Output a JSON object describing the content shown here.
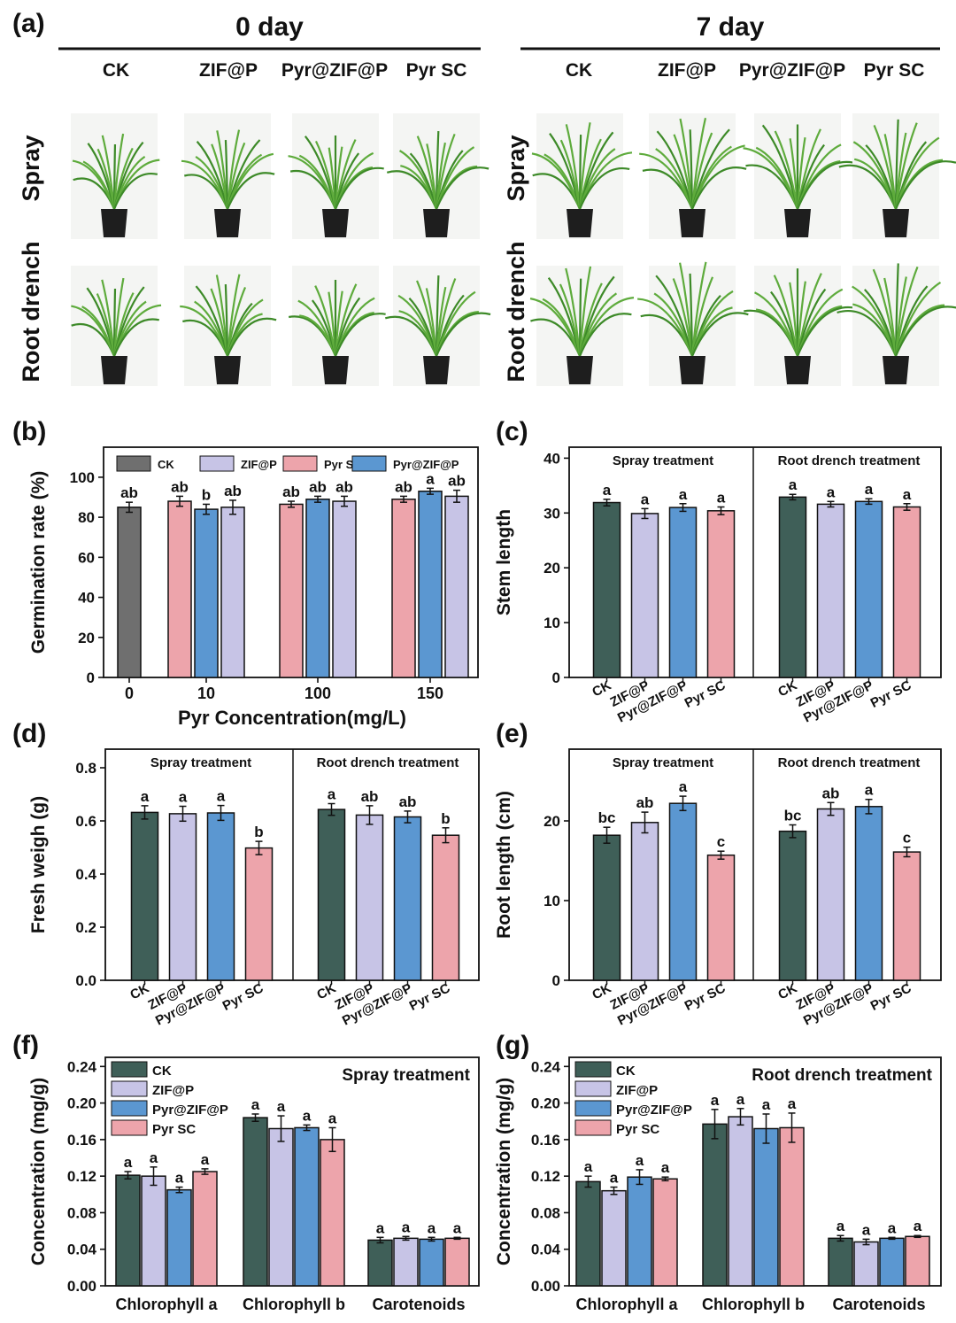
{
  "colors": {
    "CK": "#3f5f58",
    "ZIF@P": "#c7c4e6",
    "Pyr@ZIF@P": "#5b97d1",
    "Pyr SC": "#eda4ab",
    "CK_b": "#6f6f6f",
    "leaf": "#5eab3c",
    "pot": "#1e1e1e"
  },
  "panel_a": {
    "label": "(a)",
    "groups": [
      {
        "title": "0 day",
        "columns": [
          "CK",
          "ZIF@P",
          "Pyr@ZIF@P",
          "Pyr SC"
        ]
      },
      {
        "title": "7 day",
        "columns": [
          "CK",
          "ZIF@P",
          "Pyr@ZIF@P",
          "Pyr SC"
        ]
      }
    ],
    "rows": [
      "Spray",
      "Root drench"
    ]
  },
  "chart_data": [
    {
      "id": "b",
      "label": "(b)",
      "type": "bar",
      "ylabel": "Germination rate (%)",
      "xlabel": "Pyr Concentration(mg/L)",
      "ylim": [
        0,
        115
      ],
      "yticks": [
        0,
        20,
        40,
        60,
        80,
        100
      ],
      "legend": [
        "CK",
        "ZIF@P",
        "Pyr SC",
        "Pyr@ZIF@P"
      ],
      "groups": [
        {
          "label": "0",
          "bars": [
            {
              "series": "CK",
              "value": 85,
              "err": 2.5,
              "sig": "ab"
            }
          ]
        },
        {
          "label": "10",
          "bars": [
            {
              "series": "Pyr SC",
              "value": 88,
              "err": 2.5,
              "sig": "ab"
            },
            {
              "series": "Pyr@ZIF@P",
              "value": 84,
              "err": 2.5,
              "sig": "b"
            },
            {
              "series": "ZIF@P",
              "value": 85,
              "err": 3.5,
              "sig": "ab"
            }
          ]
        },
        {
          "label": "100",
          "bars": [
            {
              "series": "Pyr SC",
              "value": 86.5,
              "err": 1.5,
              "sig": "ab"
            },
            {
              "series": "Pyr@ZIF@P",
              "value": 89,
              "err": 1.5,
              "sig": "ab"
            },
            {
              "series": "ZIF@P",
              "value": 88,
              "err": 2.5,
              "sig": "ab"
            }
          ]
        },
        {
          "label": "150",
          "bars": [
            {
              "series": "Pyr SC",
              "value": 89,
              "err": 1.5,
              "sig": "ab"
            },
            {
              "series": "Pyr@ZIF@P",
              "value": 93,
              "err": 1.5,
              "sig": "a"
            },
            {
              "series": "ZIF@P",
              "value": 90.5,
              "err": 3,
              "sig": "ab"
            }
          ]
        }
      ]
    },
    {
      "id": "c",
      "label": "(c)",
      "type": "bar",
      "ylabel": "Stem length",
      "xlabel": "",
      "ylim": [
        0,
        42
      ],
      "yticks": [
        0,
        10,
        20,
        30,
        40
      ],
      "categories": [
        "CK",
        "ZIF@P",
        "Pyr@ZIF@P",
        "Pyr SC"
      ],
      "panels": [
        {
          "title": "Spray treatment",
          "values": [
            31.9,
            29.9,
            31.0,
            30.4
          ],
          "errors": [
            0.6,
            0.9,
            0.7,
            0.7
          ],
          "sig": [
            "a",
            "a",
            "a",
            "a"
          ]
        },
        {
          "title": "Root drench treatment",
          "values": [
            32.9,
            31.6,
            32.1,
            31.1
          ],
          "errors": [
            0.5,
            0.5,
            0.5,
            0.6
          ],
          "sig": [
            "a",
            "a",
            "a",
            "a"
          ]
        }
      ]
    },
    {
      "id": "d",
      "label": "(d)",
      "type": "bar",
      "ylabel": "Fresh weigh (g)",
      "xlabel": "",
      "ylim": [
        0,
        0.87
      ],
      "yticks": [
        0.0,
        0.2,
        0.4,
        0.6,
        0.8
      ],
      "categories": [
        "CK",
        "ZIF@P",
        "Pyr@ZIF@P",
        "Pyr SC"
      ],
      "panels": [
        {
          "title": "Spray treatment",
          "values": [
            0.632,
            0.627,
            0.63,
            0.498
          ],
          "errors": [
            0.025,
            0.028,
            0.028,
            0.025
          ],
          "sig": [
            "a",
            "a",
            "a",
            "b"
          ]
        },
        {
          "title": "Root drench treatment",
          "values": [
            0.643,
            0.622,
            0.615,
            0.546
          ],
          "errors": [
            0.022,
            0.035,
            0.022,
            0.028
          ],
          "sig": [
            "a",
            "ab",
            "ab",
            "b"
          ]
        }
      ]
    },
    {
      "id": "e",
      "label": "(e)",
      "type": "bar",
      "ylabel": "Root length (cm)",
      "xlabel": "",
      "ylim": [
        0,
        29
      ],
      "yticks": [
        0,
        10,
        20
      ],
      "categories": [
        "CK",
        "ZIF@P",
        "Pyr@ZIF@P",
        "Pyr SC"
      ],
      "panels": [
        {
          "title": "Spray treatment",
          "values": [
            18.2,
            19.8,
            22.2,
            15.7
          ],
          "errors": [
            1.0,
            1.3,
            0.9,
            0.5
          ],
          "sig": [
            "bc",
            "ab",
            "a",
            "c"
          ]
        },
        {
          "title": "Root drench treatment",
          "values": [
            18.7,
            21.5,
            21.8,
            16.1
          ],
          "errors": [
            0.8,
            0.8,
            0.9,
            0.6
          ],
          "sig": [
            "bc",
            "ab",
            "a",
            "c"
          ]
        }
      ]
    },
    {
      "id": "f",
      "label": "(f)",
      "type": "bar",
      "title": "Spray treatment",
      "ylabel": "Concentration (mg/g)",
      "xlabel": "",
      "ylim": [
        0,
        0.25
      ],
      "yticks": [
        0.0,
        0.04,
        0.08,
        0.12,
        0.16,
        0.2,
        0.24
      ],
      "categories": [
        "Chlorophyll a",
        "Chlorophyll b",
        "Carotenoids"
      ],
      "series": [
        {
          "name": "CK",
          "values": [
            0.121,
            0.184,
            0.05
          ],
          "errors": [
            0.004,
            0.004,
            0.003
          ],
          "sig": [
            "a",
            "a",
            "a"
          ]
        },
        {
          "name": "ZIF@P",
          "values": [
            0.12,
            0.172,
            0.052
          ],
          "errors": [
            0.01,
            0.014,
            0.002
          ],
          "sig": [
            "a",
            "a",
            "a"
          ]
        },
        {
          "name": "Pyr@ZIF@P",
          "values": [
            0.105,
            0.173,
            0.051
          ],
          "errors": [
            0.003,
            0.003,
            0.002
          ],
          "sig": [
            "a",
            "a",
            "a"
          ]
        },
        {
          "name": "Pyr SC",
          "values": [
            0.125,
            0.16,
            0.052
          ],
          "errors": [
            0.003,
            0.013,
            0.001
          ],
          "sig": [
            "a",
            "a",
            "a"
          ]
        }
      ]
    },
    {
      "id": "g",
      "label": "(g)",
      "type": "bar",
      "title": "Root drench treatment",
      "ylabel": "Concentration (mg/g)",
      "xlabel": "",
      "ylim": [
        0,
        0.25
      ],
      "yticks": [
        0.0,
        0.04,
        0.08,
        0.12,
        0.16,
        0.2,
        0.24
      ],
      "categories": [
        "Chlorophyll a",
        "Chlorophyll b",
        "Carotenoids"
      ],
      "series": [
        {
          "name": "CK",
          "values": [
            0.114,
            0.177,
            0.052
          ],
          "errors": [
            0.006,
            0.016,
            0.003
          ],
          "sig": [
            "a",
            "a",
            "a"
          ]
        },
        {
          "name": "ZIF@P",
          "values": [
            0.104,
            0.185,
            0.048
          ],
          "errors": [
            0.004,
            0.009,
            0.003
          ],
          "sig": [
            "a",
            "a",
            "a"
          ]
        },
        {
          "name": "Pyr@ZIF@P",
          "values": [
            0.119,
            0.172,
            0.052
          ],
          "errors": [
            0.008,
            0.016,
            0.001
          ],
          "sig": [
            "a",
            "a",
            "a"
          ]
        },
        {
          "name": "Pyr SC",
          "values": [
            0.117,
            0.173,
            0.054
          ],
          "errors": [
            0.002,
            0.016,
            0.001
          ],
          "sig": [
            "a",
            "a",
            "a"
          ]
        }
      ]
    }
  ]
}
